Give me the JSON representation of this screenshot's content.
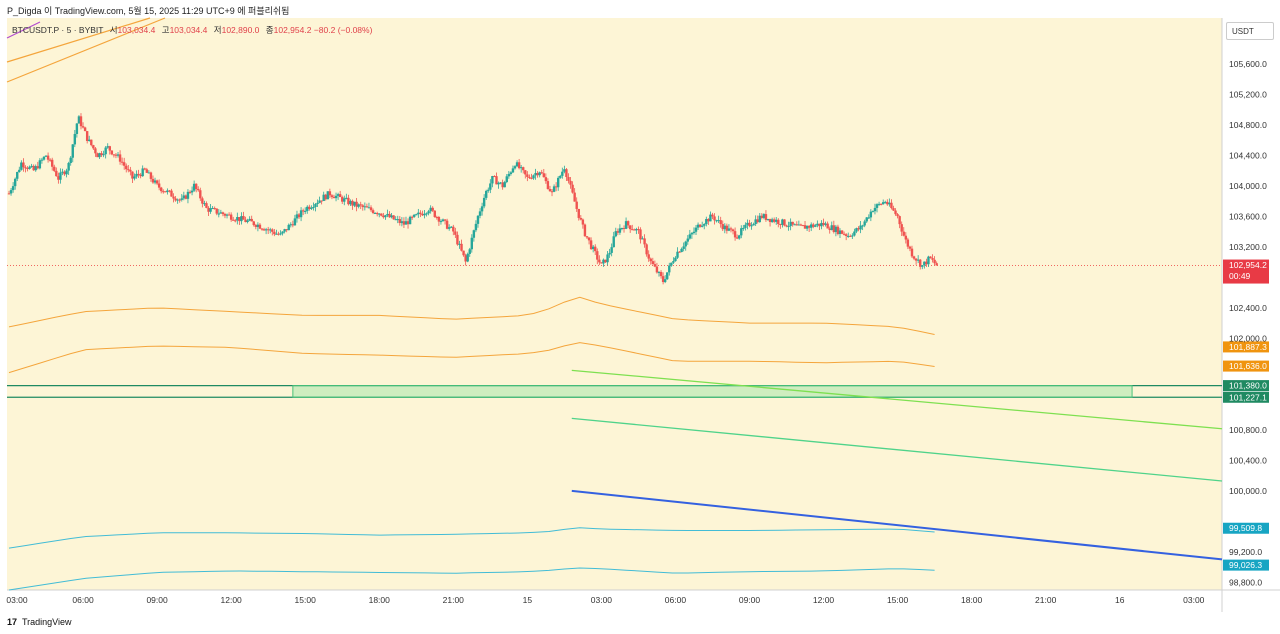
{
  "header": {
    "caption": "P_Digda 이 TradingView.com, 5월 15, 2025 11:29 UTC+9 에 퍼블리쉬됨"
  },
  "legend": {
    "symbol": "BTCUSDT.P · 5 · BYBIT",
    "open_label": "시",
    "open": "103,034.4",
    "high_label": "고",
    "high": "103,034.4",
    "low_label": "저",
    "low": "102,890.0",
    "close_label": "종",
    "close": "102,954.2",
    "change": "−80.2 (−0.08%)"
  },
  "axis": {
    "currency": "USDT"
  },
  "footer": {
    "brand": "TradingView",
    "logo": "17"
  },
  "colors": {
    "background": "#fdf5d6",
    "up": "#26a69a",
    "down": "#ef5350",
    "orange": "#f4a53c",
    "green": "#1f8a62",
    "blue": "#3461e0",
    "cyan": "#42bcd6"
  },
  "chart_data": {
    "type": "line",
    "title": "BTCUSDT.P · 5 · BYBIT",
    "xlabel": "",
    "ylabel": "USDT",
    "ylim": [
      98700,
      106200
    ],
    "x_ticks": [
      "03:00",
      "06:00",
      "09:00",
      "12:00",
      "15:00",
      "18:00",
      "21:00",
      "15",
      "03:00",
      "06:00",
      "09:00",
      "12:00",
      "15:00",
      "18:00",
      "21:00",
      "16",
      "03:00"
    ],
    "x_range_hours": [
      0,
      48
    ],
    "y_ticks": [
      "105,600.0",
      "105,200.0",
      "104,800.0",
      "104,400.0",
      "104,000.0",
      "103,600.0",
      "103,200.0",
      "102,400.0",
      "102,000.0",
      "100,800.0",
      "100,400.0",
      "100,000.0",
      "99,200.0",
      "98,800.0"
    ],
    "price_path": {
      "hours": [
        0,
        0.5,
        1,
        1.5,
        2,
        2.4,
        2.8,
        3.2,
        3.6,
        4,
        4.5,
        5,
        5.5,
        6,
        6.5,
        7,
        7.5,
        8,
        9,
        10,
        11,
        12,
        12.5,
        13,
        14,
        15,
        16,
        17,
        18,
        18.5,
        19,
        19.3,
        19.6,
        20,
        20.5,
        21,
        21.5,
        22,
        22.5,
        23,
        23.3,
        23.6,
        24,
        24.3,
        24.6,
        25,
        25.5,
        26,
        26.5,
        27,
        27.5,
        28,
        28.5,
        29,
        29.5,
        30,
        30.5,
        31,
        32,
        33,
        34,
        34.5,
        35,
        35.5,
        36,
        36.3,
        36.6,
        37,
        37.3,
        37.6
      ],
      "prices": [
        103900,
        104300,
        104200,
        104400,
        104100,
        104250,
        104900,
        104600,
        104400,
        104500,
        104350,
        104100,
        104200,
        104000,
        103900,
        103800,
        104000,
        103700,
        103600,
        103500,
        103350,
        103700,
        103800,
        103900,
        103750,
        103650,
        103500,
        103700,
        103400,
        103000,
        103600,
        103900,
        104100,
        104000,
        104300,
        104100,
        104200,
        103900,
        104250,
        103700,
        103400,
        103200,
        102950,
        103100,
        103400,
        103500,
        103400,
        103000,
        102750,
        103100,
        103300,
        103500,
        103600,
        103450,
        103350,
        103500,
        103600,
        103550,
        103450,
        103500,
        103350,
        103450,
        103700,
        103800,
        103600,
        103300,
        103100,
        102950,
        103050,
        102954
      ]
    },
    "last_price": "102,954.2",
    "countdown": "00:49",
    "bands": {
      "orange_upper": {
        "hours": [
          0,
          3,
          6,
          9,
          12,
          15,
          18,
          21,
          22,
          23,
          24,
          27,
          30,
          33,
          36,
          37.5
        ],
        "values": [
          102150,
          102350,
          102400,
          102350,
          102300,
          102300,
          102250,
          102300,
          102400,
          102550,
          102450,
          102250,
          102200,
          102200,
          102150,
          102050
        ]
      },
      "orange_lower": {
        "hours": [
          0,
          3,
          6,
          9,
          12,
          15,
          18,
          21,
          22,
          23,
          24,
          27,
          30,
          33,
          36,
          37.5
        ],
        "values": [
          101550,
          101850,
          101900,
          101880,
          101800,
          101780,
          101750,
          101800,
          101850,
          101950,
          101900,
          101700,
          101700,
          101680,
          101700,
          101630
        ]
      },
      "cyan_upper": {
        "hours": [
          0,
          3,
          6,
          9,
          12,
          15,
          18,
          21,
          22,
          23,
          24,
          27,
          30,
          33,
          36,
          37.5
        ],
        "values": [
          99250,
          99400,
          99450,
          99450,
          99440,
          99420,
          99430,
          99450,
          99470,
          99520,
          99500,
          99480,
          99480,
          99490,
          99500,
          99460
        ]
      },
      "cyan_lower": {
        "hours": [
          0,
          3,
          6,
          9,
          12,
          15,
          18,
          21,
          22,
          23,
          24,
          27,
          30,
          33,
          36,
          37.5
        ],
        "values": [
          98700,
          98850,
          98930,
          98950,
          98940,
          98930,
          98920,
          98940,
          98960,
          98990,
          98980,
          98920,
          98940,
          98950,
          98980,
          98960
        ]
      }
    },
    "zone": {
      "top": 101380.0,
      "bottom": 101227.1,
      "start_hour": 11.5,
      "end_hour": 45.5
    },
    "trendlines": [
      {
        "name": "light-green",
        "from": [
          22.8,
          101580
        ],
        "to": [
          56.5,
          100600
        ]
      },
      {
        "name": "mint-green",
        "from": [
          22.8,
          100950
        ],
        "to": [
          56.5,
          99900
        ]
      },
      {
        "name": "blue",
        "from": [
          22.8,
          100000
        ],
        "to": [
          56.5,
          98850
        ]
      }
    ],
    "price_labels": [
      {
        "text": "102,954.2",
        "value": 102954.2,
        "kind": "last"
      },
      {
        "text": "101,887.3",
        "value": 101887.3,
        "kind": "orange"
      },
      {
        "text": "101,636.0",
        "value": 101636.0,
        "kind": "orange"
      },
      {
        "text": "101,380.0",
        "value": 101380.0,
        "kind": "green"
      },
      {
        "text": "101,227.1",
        "value": 101227.1,
        "kind": "green"
      },
      {
        "text": "99,509.8",
        "value": 99509.8,
        "kind": "cyan"
      },
      {
        "text": "99,026.3",
        "value": 99026.3,
        "kind": "cyan"
      }
    ]
  }
}
